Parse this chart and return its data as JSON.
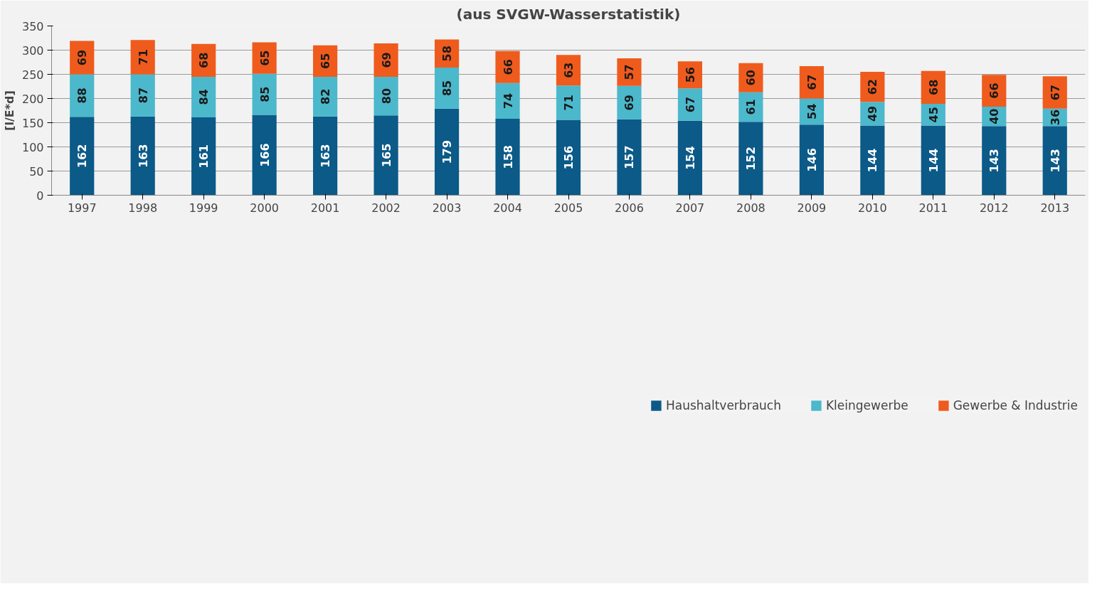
{
  "chart_data": {
    "type": "bar",
    "title": "(aus SVGW-Wasserstatistik)",
    "ylabel": "[l/E*d]",
    "categories": [
      "1997",
      "1998",
      "1999",
      "2000",
      "2001",
      "2002",
      "2003",
      "2004",
      "2005",
      "2006",
      "2007",
      "2008",
      "2009",
      "2010",
      "2011",
      "2012",
      "2013"
    ],
    "stacked": true,
    "data_labels": true,
    "grid": "y",
    "legend": "bottom",
    "ylim": [
      0,
      350
    ],
    "yticks": [
      0,
      50,
      100,
      150,
      200,
      250,
      300,
      350
    ],
    "series": [
      {
        "name": "Haushaltverbrauch",
        "color": "#0b5a88",
        "values": [
          162,
          163,
          161,
          166,
          163,
          165,
          179,
          158,
          156,
          157,
          154,
          152,
          146,
          144,
          144,
          143,
          143
        ]
      },
      {
        "name": "Kleingewerbe",
        "color": "#4bb8cc",
        "values": [
          88,
          87,
          84,
          85,
          82,
          80,
          85,
          74,
          71,
          69,
          67,
          61,
          54,
          49,
          45,
          40,
          36
        ]
      },
      {
        "name": "Gewerbe & Industrie",
        "color": "#ef5b1c",
        "values": [
          69,
          71,
          68,
          65,
          65,
          69,
          58,
          66,
          63,
          57,
          56,
          60,
          67,
          62,
          68,
          66,
          67
        ]
      }
    ]
  }
}
